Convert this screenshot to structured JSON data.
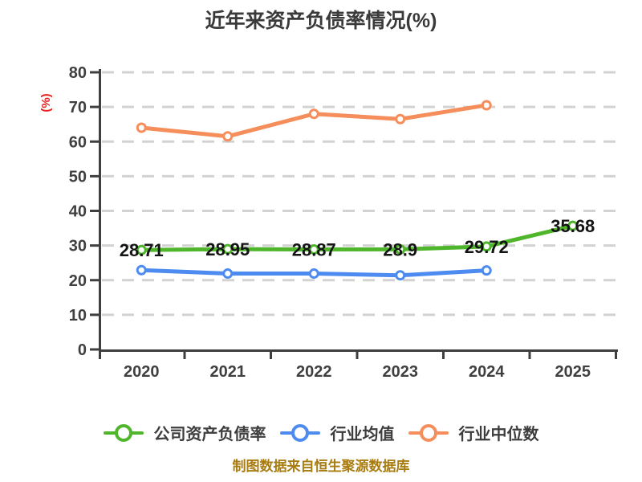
{
  "title": "近年来资产负债率情况(%)",
  "caption": "制图数据来自恒生聚源数据库",
  "y_axis_unit_label": "(%)",
  "colors": {
    "background": "#ffffff",
    "title_text": "#3a3a3a",
    "axis": "#3f3f3f",
    "tick_label": "#3f3f3f",
    "gridline": "#d2d2d2",
    "y_unit_label_red": "#e61e1e",
    "data_label": "#141414",
    "caption_gold": "#a87c10",
    "legend_text": "#3d3d3d",
    "series_green": "#4fb62c",
    "series_blue": "#4d8bf0",
    "series_orange": "#f68e5c"
  },
  "chart_data": {
    "type": "line",
    "title": "近年来资产负债率情况(%)",
    "xlabel": "",
    "ylabel": "(%)",
    "ylim": [
      0,
      80
    ],
    "y_ticks": [
      0,
      10,
      20,
      30,
      40,
      50,
      60,
      70,
      80
    ],
    "grid": "horizontal-dashed",
    "legend_position": "bottom",
    "categories": [
      "2020",
      "2021",
      "2022",
      "2023",
      "2024",
      "2025"
    ],
    "series": [
      {
        "key": "company-debt-ratio",
        "name": "公司资产负债率",
        "color": "#4fb62c",
        "values": [
          28.71,
          28.95,
          28.87,
          28.9,
          29.72,
          35.68
        ],
        "point_labels": [
          "28.71",
          "28.95",
          "28.87",
          "28.9",
          "29.72",
          "35.68"
        ]
      },
      {
        "key": "industry-mean",
        "name": "行业均值",
        "color": "#4d8bf0",
        "values": [
          22.9,
          21.9,
          21.9,
          21.4,
          22.8
        ],
        "point_labels": []
      },
      {
        "key": "industry-median",
        "name": "行业中位数",
        "color": "#f68e5c",
        "values": [
          64,
          61.5,
          68,
          66.5,
          70.5
        ],
        "point_labels": []
      }
    ]
  }
}
